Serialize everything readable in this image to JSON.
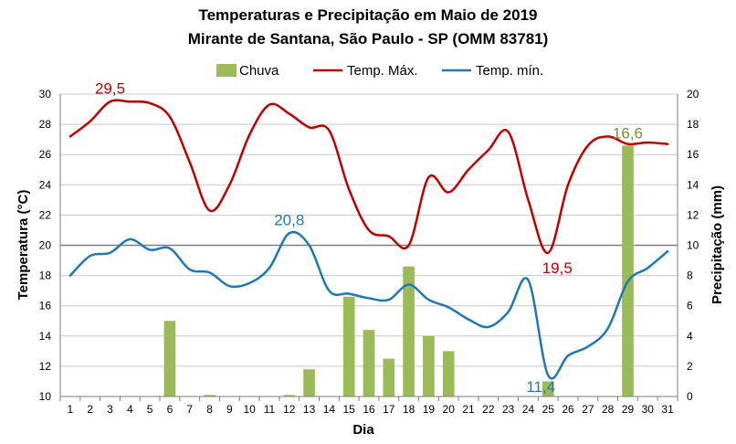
{
  "chart_data": {
    "type": "bar+line",
    "title": "Temperaturas e Precipitação em Maio de 2019",
    "subtitle": "Mirante de Santana, São Paulo - SP (OMM 83781)",
    "xlabel": "Dia",
    "ylabel_left": "Temperatura (°C)",
    "ylabel_right": "Precipitação (mm)",
    "ylim_left": [
      10,
      30
    ],
    "ylim_right": [
      0,
      20
    ],
    "yticks_left": [
      "10",
      "12",
      "14",
      "16",
      "18",
      "20",
      "22",
      "24",
      "26",
      "28",
      "30"
    ],
    "yticks_right": [
      "0",
      "2",
      "4",
      "6",
      "8",
      "10",
      "12",
      "14",
      "16",
      "18",
      "20"
    ],
    "categories": [
      "1",
      "2",
      "3",
      "4",
      "5",
      "6",
      "7",
      "8",
      "9",
      "10",
      "11",
      "12",
      "13",
      "14",
      "15",
      "16",
      "17",
      "18",
      "19",
      "20",
      "21",
      "22",
      "23",
      "24",
      "25",
      "26",
      "27",
      "28",
      "29",
      "30",
      "31"
    ],
    "grid": "horizontal",
    "legend_position": "top",
    "series": [
      {
        "name": "Chuva",
        "kind": "bar",
        "axis": "right",
        "color": "#9bbb59",
        "values": [
          0,
          0,
          0,
          0,
          0,
          5.0,
          0,
          0.1,
          0,
          0,
          0,
          0.1,
          1.8,
          0,
          6.6,
          4.4,
          2.5,
          8.6,
          4.0,
          3.0,
          0,
          0,
          0,
          0,
          1.0,
          0,
          0,
          0,
          16.6,
          0,
          0
        ]
      },
      {
        "name": "Temp. Máx.",
        "kind": "line",
        "axis": "left",
        "color": "#c00000",
        "values": [
          27.2,
          28.2,
          29.5,
          29.5,
          29.4,
          28.5,
          25.5,
          22.3,
          24.0,
          27.3,
          29.3,
          28.7,
          27.8,
          27.6,
          23.7,
          21.0,
          20.6,
          20.0,
          24.5,
          23.5,
          25.0,
          26.3,
          27.5,
          23.0,
          19.5,
          24.0,
          26.6,
          27.2,
          26.7,
          26.8,
          26.7
        ]
      },
      {
        "name": "Temp. mín.",
        "kind": "line",
        "axis": "left",
        "color": "#1f78b4",
        "values": [
          18.0,
          19.3,
          19.5,
          20.4,
          19.7,
          19.8,
          18.4,
          18.2,
          17.3,
          17.5,
          18.5,
          20.8,
          20.0,
          17.0,
          16.8,
          16.5,
          16.4,
          17.4,
          16.4,
          15.9,
          15.1,
          14.6,
          15.6,
          17.7,
          11.4,
          12.7,
          13.3,
          14.5,
          17.6,
          18.5,
          19.6
        ]
      }
    ],
    "annotations": [
      {
        "text": "29,5",
        "series": "Temp. Máx.",
        "day": "3",
        "color": "#c00000"
      },
      {
        "text": "20,8",
        "series": "Temp. mín.",
        "day": "12",
        "color": "#1f78b4"
      },
      {
        "text": "19,5",
        "series": "Temp. Máx.",
        "day": "25",
        "color": "#c00000"
      },
      {
        "text": "11,4",
        "series": "Temp. mín.",
        "day": "25",
        "color": "#1f78b4"
      },
      {
        "text": "16,6",
        "series": "Chuva",
        "day": "29",
        "color": "#76923c"
      }
    ]
  }
}
